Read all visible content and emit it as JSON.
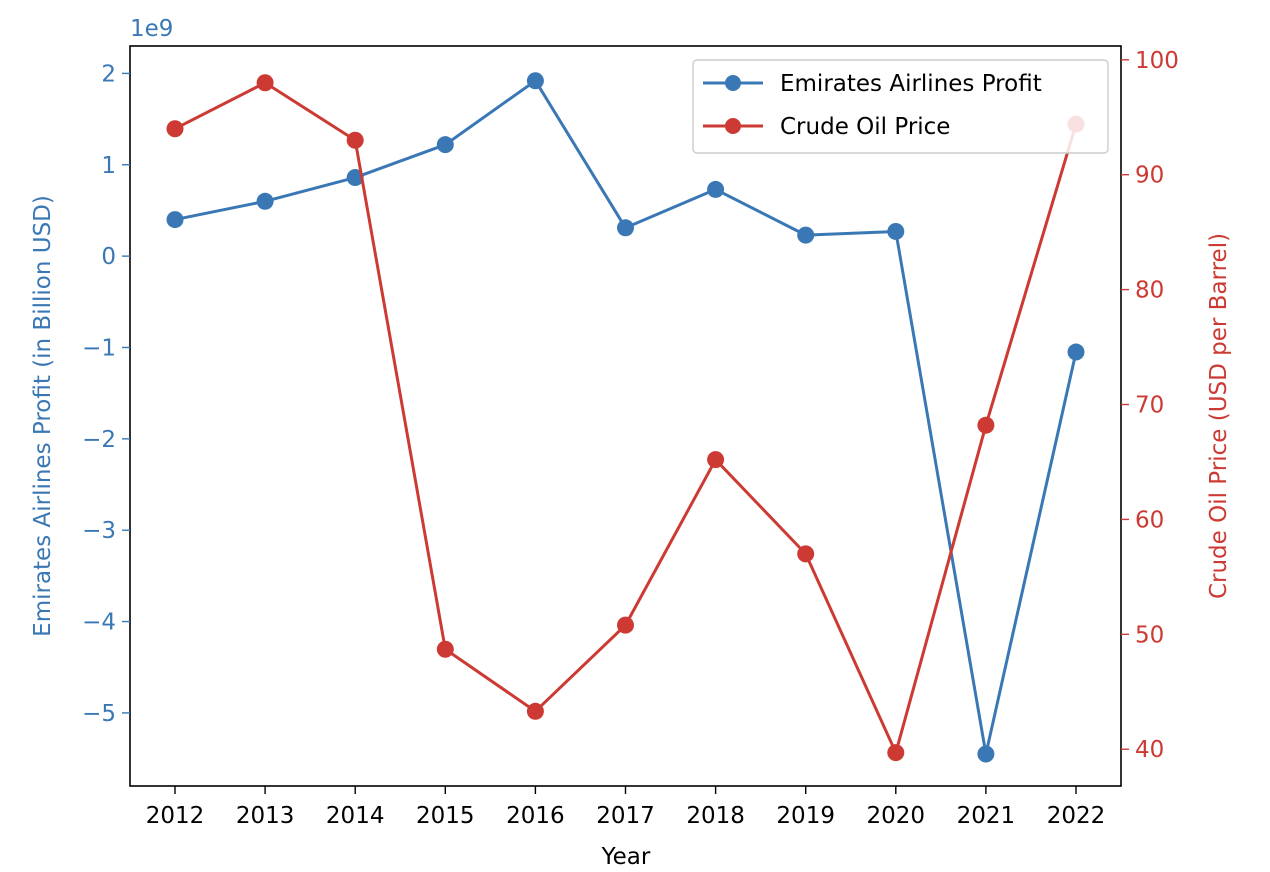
{
  "chart_data": {
    "type": "line",
    "x": [
      2012,
      2013,
      2014,
      2015,
      2016,
      2017,
      2018,
      2019,
      2020,
      2021,
      2022
    ],
    "xlabel": "Year",
    "y_left": {
      "label": "Emirates Airlines Profit (in Billion USD)",
      "scale_note": "1e9",
      "ticks": [
        2,
        1,
        0,
        -1,
        -2,
        -3,
        -4,
        -5
      ],
      "tick_labels": [
        "2",
        "1",
        "0",
        "−1",
        "−2",
        "−3",
        "−4",
        "−5"
      ],
      "ylim": [
        -5.8,
        2.3
      ],
      "color": "#3a78b5"
    },
    "y_right": {
      "label": "Crude Oil Price (USD per Barrel)",
      "ticks": [
        100,
        90,
        80,
        70,
        60,
        50,
        40
      ],
      "tick_labels": [
        "100",
        "90",
        "80",
        "70",
        "60",
        "50",
        "40"
      ],
      "ylim": [
        36.8,
        101.2
      ],
      "color": "#cc3a33"
    },
    "series": [
      {
        "name": "Emirates Airlines Profit",
        "axis": "left",
        "color": "#3a78b5",
        "values": [
          0.4,
          0.6,
          0.86,
          1.22,
          1.92,
          0.31,
          0.73,
          0.23,
          0.27,
          -5.45,
          -1.05
        ]
      },
      {
        "name": "Crude Oil Price",
        "axis": "right",
        "color": "#cc3a33",
        "values": [
          94,
          98,
          93,
          48.7,
          43.3,
          50.8,
          65.2,
          57,
          39.7,
          68.2,
          94.4
        ]
      }
    ],
    "legend": {
      "placement": "top-right"
    },
    "grid": false
  }
}
